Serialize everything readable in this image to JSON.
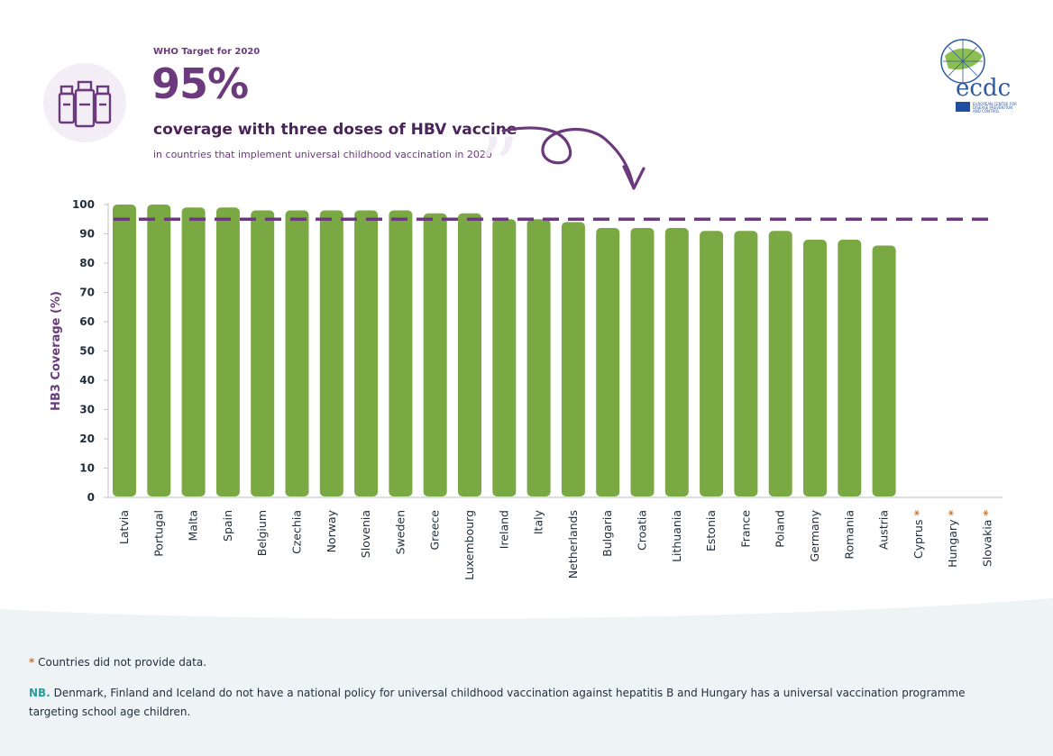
{
  "header": {
    "label": "WHO Target for 2020",
    "percent": "95%",
    "subtitle": "coverage with three doses of HBV vaccine",
    "note": "in countries that implement universal childhood vaccination in 2020"
  },
  "logo": {
    "text": "ecdc",
    "caption": "EUROPEAN CENTRE FOR DISEASE PREVENTION AND CONTROL"
  },
  "chart_data": {
    "type": "bar",
    "ylabel": "HB3 Coverage (%)",
    "ylim": [
      0,
      100
    ],
    "yticks": [
      0,
      10,
      20,
      30,
      40,
      50,
      60,
      70,
      80,
      90,
      100
    ],
    "target": 95,
    "categories": [
      "Latvia",
      "Portugal",
      "Malta",
      "Spain",
      "Belgium",
      "Czechia",
      "Norway",
      "Slovenia",
      "Sweden",
      "Greece",
      "Luxembourg",
      "Ireland",
      "Italy",
      "Netherlands",
      "Bulgaria",
      "Croatia",
      "Lithuania",
      "Estonia",
      "France",
      "Poland",
      "Germany",
      "Romania",
      "Austria",
      "Cyprus",
      "Hungary",
      "Slovakia"
    ],
    "values": [
      100,
      100,
      99,
      99,
      98,
      98,
      98,
      98,
      98,
      97,
      97,
      95,
      95,
      94,
      92,
      92,
      92,
      91,
      91,
      91,
      88,
      88,
      86,
      null,
      null,
      null
    ],
    "no_data_marker": "*",
    "colors": {
      "bar": "#7aa843",
      "target_line": "#6b3a7c",
      "axis_text": "#1f2d3a",
      "label": "#6b3a7c",
      "star": "#d9731f"
    }
  },
  "footer": {
    "star": "*",
    "no_data_note": "Countries did not provide data.",
    "nb_label": "NB.",
    "nb_text": "Denmark, Finland and Iceland do not have a national policy for universal childhood vaccination against hepatitis B and Hungary has a universal vaccination programme targeting school age children."
  }
}
